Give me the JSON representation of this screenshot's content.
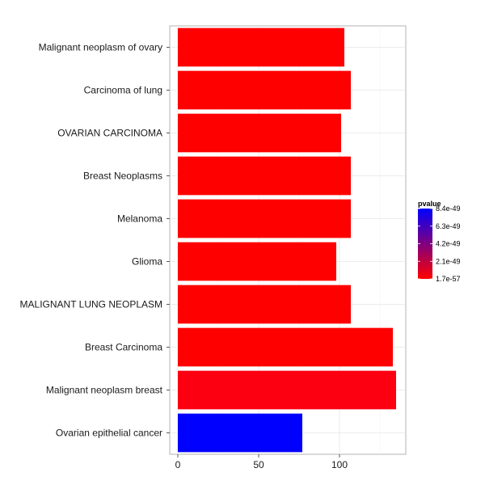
{
  "chart_data": {
    "type": "bar",
    "orientation": "horizontal",
    "categories": [
      "Malignant neoplasm of ovary",
      "Carcinoma of lung",
      "OVARIAN CARCINOMA",
      "Breast Neoplasms",
      "Melanoma",
      "Glioma",
      "MALIGNANT LUNG NEOPLASM",
      "Breast Carcinoma",
      "Malignant neoplasm breast",
      "Ovarian epithelial cancer"
    ],
    "values": [
      103,
      107,
      101,
      107,
      107,
      98,
      107,
      133,
      135,
      77
    ],
    "bar_colors": [
      "#ff0000",
      "#ff0000",
      "#ff0000",
      "#ff0000",
      "#ff0000",
      "#ff0000",
      "#ff0000",
      "#ff0000",
      "#fc0012",
      "#0000ff"
    ],
    "xlim": [
      -5,
      141
    ],
    "xticks": [
      0,
      50,
      100
    ],
    "title": "",
    "xlabel": "",
    "ylabel": "",
    "grid": true,
    "legend": {
      "title": "pvalue",
      "placement": "right",
      "gradient_colors": [
        "#0000ff",
        "#ff0000"
      ],
      "labels": [
        "8.4e-49",
        "6.3e-49",
        "4.2e-49",
        "2.1e-49",
        "1.7e-57"
      ]
    }
  }
}
